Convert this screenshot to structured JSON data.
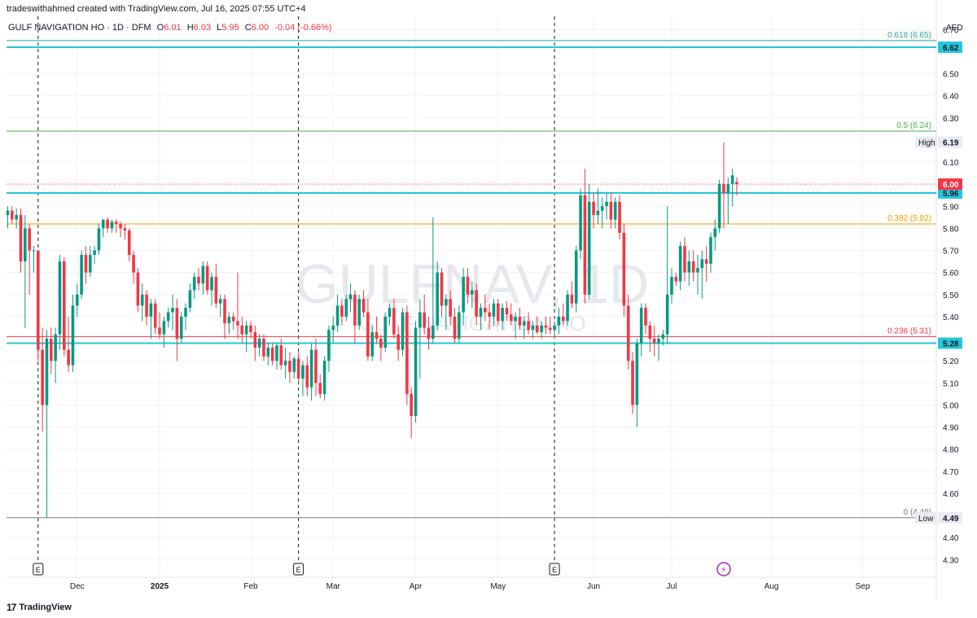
{
  "header": {
    "credit": "tradeswithahmed created with TradingView.com, Jul 16, 2025 07:55 UTC+4"
  },
  "legend": {
    "symbol": "GULF NAVIGATION HO · 1D · DFM",
    "open_label": "O",
    "open": "6.01",
    "high_label": "H",
    "high": "6.03",
    "low_label": "L",
    "low": "5.95",
    "close_label": "C",
    "close": "6.00",
    "change": "-0.04 (-0.66%)"
  },
  "watermark": {
    "ticker": "GULFNAV, 1D",
    "name": "GULF NAVIGATION HO"
  },
  "footer": {
    "brand": "TradingView"
  },
  "colors": {
    "up": "#089981",
    "down": "#f23645",
    "grid": "#f0f3fa",
    "text": "#131722",
    "support": "#26c6da",
    "fib_618": "#26a69a",
    "fib_5": "#4caf50",
    "fib_382": "#ff9800",
    "fib_236": "#f23645",
    "fib_0": "#787b86"
  },
  "chart_data": {
    "type": "candlestick",
    "currency": "AED",
    "ylim": [
      4.22,
      6.76
    ],
    "y_ticks": [
      "6.70",
      "6.50",
      "6.40",
      "6.30",
      "6.10",
      "5.90",
      "5.80",
      "5.70",
      "5.60",
      "5.50",
      "5.40",
      "5.20",
      "5.10",
      "5.00",
      "4.90",
      "4.80",
      "4.70",
      "4.60",
      "4.40",
      "4.30"
    ],
    "x_ticks": [
      {
        "label": "Dec",
        "index": 16
      },
      {
        "label": "2025",
        "index": 35
      },
      {
        "label": "Feb",
        "index": 56
      },
      {
        "label": "Mar",
        "index": 75
      },
      {
        "label": "Apr",
        "index": 94
      },
      {
        "label": "May",
        "index": 113
      },
      {
        "label": "Jun",
        "index": 135
      },
      {
        "label": "Jul",
        "index": 153
      },
      {
        "label": "Aug",
        "index": 176
      },
      {
        "label": "Sep",
        "index": 197
      }
    ],
    "fib_levels": [
      {
        "label": "0.618 (6.65)",
        "value": 6.65,
        "key": "fib_618"
      },
      {
        "label": "0.5 (6.24)",
        "value": 6.24,
        "key": "fib_5"
      },
      {
        "label": "0.382 (5.82)",
        "value": 5.82,
        "key": "fib_382"
      },
      {
        "label": "0.236 (5.31)",
        "value": 5.31,
        "key": "fib_236"
      },
      {
        "label": "0 (4.49)",
        "value": 4.49,
        "key": "fib_0"
      }
    ],
    "support_lines": [
      {
        "value": 6.62,
        "label": "6.62"
      },
      {
        "value": 5.96,
        "label": "5.96"
      },
      {
        "value": 5.28,
        "label": "5.28"
      }
    ],
    "price_tags": [
      {
        "value": 6.19,
        "label": "6.19",
        "side_label": "High"
      },
      {
        "value": 4.49,
        "label": "4.49",
        "side_label": "Low"
      },
      {
        "value": 6.0,
        "label": "6.00",
        "side_label": ""
      }
    ],
    "last_price": 6.0,
    "event_markers": [
      {
        "index": 7,
        "glyph": "E",
        "kind": "earnings"
      },
      {
        "index": 67,
        "glyph": "E",
        "kind": "earnings"
      },
      {
        "index": 126,
        "glyph": "E",
        "kind": "earnings"
      },
      {
        "index": 165,
        "glyph": "⚡",
        "kind": "event"
      }
    ],
    "earnings_lines": [
      7,
      67,
      126
    ],
    "candles": [
      [
        5.86,
        5.9,
        5.8,
        5.88
      ],
      [
        5.88,
        5.9,
        5.82,
        5.84
      ],
      [
        5.84,
        5.89,
        5.8,
        5.86
      ],
      [
        5.86,
        5.89,
        5.6,
        5.65
      ],
      [
        5.65,
        5.86,
        5.35,
        5.8
      ],
      [
        5.8,
        5.82,
        5.5,
        5.7
      ],
      [
        5.7,
        5.72,
        5.6,
        5.7
      ],
      [
        5.7,
        5.7,
        5.2,
        5.25
      ],
      [
        5.25,
        5.35,
        4.88,
        5.0
      ],
      [
        5.0,
        5.34,
        4.49,
        5.3
      ],
      [
        5.3,
        5.35,
        5.14,
        5.2
      ],
      [
        5.2,
        5.35,
        5.1,
        5.32
      ],
      [
        5.32,
        5.68,
        5.25,
        5.65
      ],
      [
        5.65,
        5.67,
        5.22,
        5.25
      ],
      [
        5.25,
        5.4,
        5.15,
        5.18
      ],
      [
        5.18,
        5.5,
        5.15,
        5.45
      ],
      [
        5.45,
        5.55,
        5.4,
        5.5
      ],
      [
        5.5,
        5.7,
        5.48,
        5.68
      ],
      [
        5.68,
        5.72,
        5.55,
        5.6
      ],
      [
        5.6,
        5.72,
        5.58,
        5.68
      ],
      [
        5.68,
        5.72,
        5.64,
        5.7
      ],
      [
        5.7,
        5.82,
        5.68,
        5.8
      ],
      [
        5.8,
        5.84,
        5.76,
        5.84
      ],
      [
        5.84,
        5.85,
        5.78,
        5.8
      ],
      [
        5.8,
        5.84,
        5.78,
        5.83
      ],
      [
        5.83,
        5.84,
        5.78,
        5.82
      ],
      [
        5.82,
        5.83,
        5.76,
        5.8
      ],
      [
        5.8,
        5.82,
        5.75,
        5.79
      ],
      [
        5.79,
        5.8,
        5.65,
        5.68
      ],
      [
        5.68,
        5.7,
        5.55,
        5.6
      ],
      [
        5.6,
        5.62,
        5.42,
        5.45
      ],
      [
        5.45,
        5.55,
        5.38,
        5.5
      ],
      [
        5.5,
        5.52,
        5.36,
        5.4
      ],
      [
        5.4,
        5.48,
        5.3,
        5.46
      ],
      [
        5.46,
        5.48,
        5.32,
        5.35
      ],
      [
        5.35,
        5.42,
        5.3,
        5.32
      ],
      [
        5.32,
        5.4,
        5.26,
        5.38
      ],
      [
        5.38,
        5.44,
        5.35,
        5.42
      ],
      [
        5.42,
        5.5,
        5.34,
        5.44
      ],
      [
        5.44,
        5.48,
        5.2,
        5.3
      ],
      [
        5.3,
        5.42,
        5.28,
        5.4
      ],
      [
        5.4,
        5.46,
        5.34,
        5.44
      ],
      [
        5.44,
        5.55,
        5.42,
        5.52
      ],
      [
        5.52,
        5.6,
        5.48,
        5.58
      ],
      [
        5.58,
        5.62,
        5.52,
        5.55
      ],
      [
        5.55,
        5.65,
        5.5,
        5.63
      ],
      [
        5.63,
        5.65,
        5.5,
        5.52
      ],
      [
        5.52,
        5.6,
        5.45,
        5.58
      ],
      [
        5.58,
        5.64,
        5.44,
        5.46
      ],
      [
        5.46,
        5.5,
        5.4,
        5.48
      ],
      [
        5.48,
        5.5,
        5.3,
        5.37
      ],
      [
        5.37,
        5.42,
        5.32,
        5.4
      ],
      [
        5.4,
        5.42,
        5.34,
        5.38
      ],
      [
        5.38,
        5.6,
        5.3,
        5.36
      ],
      [
        5.36,
        5.4,
        5.28,
        5.32
      ],
      [
        5.32,
        5.38,
        5.24,
        5.36
      ],
      [
        5.36,
        5.38,
        5.3,
        5.33
      ],
      [
        5.33,
        5.36,
        5.2,
        5.26
      ],
      [
        5.26,
        5.32,
        5.22,
        5.3
      ],
      [
        5.3,
        5.32,
        5.2,
        5.22
      ],
      [
        5.22,
        5.28,
        5.18,
        5.26
      ],
      [
        5.26,
        5.28,
        5.18,
        5.2
      ],
      [
        5.2,
        5.28,
        5.16,
        5.27
      ],
      [
        5.27,
        5.3,
        5.16,
        5.18
      ],
      [
        5.18,
        5.26,
        5.12,
        5.2
      ],
      [
        5.2,
        5.24,
        5.1,
        5.15
      ],
      [
        5.15,
        5.22,
        5.12,
        5.21
      ],
      [
        5.21,
        5.24,
        5.1,
        5.12
      ],
      [
        5.12,
        5.2,
        5.04,
        5.18
      ],
      [
        5.18,
        5.22,
        5.04,
        5.08
      ],
      [
        5.08,
        5.28,
        5.02,
        5.25
      ],
      [
        5.25,
        5.3,
        5.04,
        5.1
      ],
      [
        5.1,
        5.14,
        5.03,
        5.05
      ],
      [
        5.05,
        5.22,
        5.02,
        5.2
      ],
      [
        5.2,
        5.36,
        5.15,
        5.34
      ],
      [
        5.34,
        5.4,
        5.28,
        5.36
      ],
      [
        5.36,
        5.5,
        5.33,
        5.45
      ],
      [
        5.45,
        5.48,
        5.36,
        5.4
      ],
      [
        5.4,
        5.5,
        5.38,
        5.48
      ],
      [
        5.48,
        5.55,
        5.42,
        5.5
      ],
      [
        5.5,
        5.52,
        5.28,
        5.36
      ],
      [
        5.36,
        5.5,
        5.34,
        5.48
      ],
      [
        5.48,
        5.52,
        5.4,
        5.42
      ],
      [
        5.42,
        5.48,
        5.2,
        5.22
      ],
      [
        5.22,
        5.36,
        5.2,
        5.33
      ],
      [
        5.33,
        5.4,
        5.28,
        5.3
      ],
      [
        5.3,
        5.32,
        5.2,
        5.26
      ],
      [
        5.26,
        5.42,
        5.24,
        5.4
      ],
      [
        5.4,
        5.46,
        5.36,
        5.44
      ],
      [
        5.44,
        5.48,
        5.3,
        5.32
      ],
      [
        5.32,
        5.36,
        5.2,
        5.25
      ],
      [
        5.25,
        5.44,
        5.22,
        5.42
      ],
      [
        5.42,
        5.45,
        5.0,
        5.05
      ],
      [
        5.05,
        5.08,
        4.85,
        4.95
      ],
      [
        4.95,
        5.38,
        4.92,
        5.35
      ],
      [
        5.35,
        5.48,
        5.12,
        5.42
      ],
      [
        5.42,
        5.5,
        5.32,
        5.35
      ],
      [
        5.35,
        5.4,
        5.25,
        5.3
      ],
      [
        5.3,
        5.85,
        5.28,
        5.36
      ],
      [
        5.36,
        5.65,
        5.34,
        5.6
      ],
      [
        5.6,
        5.62,
        5.4,
        5.45
      ],
      [
        5.45,
        5.5,
        5.34,
        5.48
      ],
      [
        5.48,
        5.52,
        5.36,
        5.4
      ],
      [
        5.4,
        5.44,
        5.28,
        5.3
      ],
      [
        5.3,
        5.45,
        5.28,
        5.42
      ],
      [
        5.42,
        5.62,
        5.36,
        5.58
      ],
      [
        5.58,
        5.62,
        5.46,
        5.5
      ],
      [
        5.5,
        5.56,
        5.44,
        5.52
      ],
      [
        5.52,
        5.55,
        5.36,
        5.4
      ],
      [
        5.4,
        5.46,
        5.34,
        5.44
      ],
      [
        5.44,
        5.5,
        5.38,
        5.42
      ],
      [
        5.42,
        5.46,
        5.34,
        5.4
      ],
      [
        5.4,
        5.48,
        5.36,
        5.46
      ],
      [
        5.46,
        5.48,
        5.36,
        5.38
      ],
      [
        5.38,
        5.46,
        5.34,
        5.44
      ],
      [
        5.44,
        5.47,
        5.38,
        5.41
      ],
      [
        5.41,
        5.46,
        5.36,
        5.38
      ],
      [
        5.38,
        5.42,
        5.3,
        5.4
      ],
      [
        5.4,
        5.44,
        5.34,
        5.36
      ],
      [
        5.36,
        5.4,
        5.3,
        5.38
      ],
      [
        5.38,
        5.42,
        5.32,
        5.34
      ],
      [
        5.34,
        5.38,
        5.3,
        5.36
      ],
      [
        5.36,
        5.4,
        5.32,
        5.33
      ],
      [
        5.33,
        5.38,
        5.3,
        5.36
      ],
      [
        5.36,
        5.4,
        5.32,
        5.35
      ],
      [
        5.35,
        5.4,
        5.32,
        5.34
      ],
      [
        5.34,
        5.38,
        5.3,
        5.36
      ],
      [
        5.36,
        5.44,
        5.32,
        5.4
      ],
      [
        5.4,
        5.46,
        5.36,
        5.38
      ],
      [
        5.38,
        5.52,
        5.36,
        5.5
      ],
      [
        5.5,
        5.56,
        5.44,
        5.46
      ],
      [
        5.46,
        5.72,
        5.42,
        5.7
      ],
      [
        5.7,
        5.98,
        5.66,
        5.95
      ],
      [
        5.95,
        6.07,
        5.46,
        5.5
      ],
      [
        5.5,
        6.0,
        5.48,
        5.92
      ],
      [
        5.92,
        5.96,
        5.8,
        5.86
      ],
      [
        5.86,
        5.98,
        5.82,
        5.88
      ],
      [
        5.88,
        5.94,
        5.8,
        5.9
      ],
      [
        5.9,
        5.96,
        5.84,
        5.92
      ],
      [
        5.92,
        5.96,
        5.8,
        5.84
      ],
      [
        5.84,
        5.94,
        5.8,
        5.92
      ],
      [
        5.92,
        5.95,
        5.75,
        5.78
      ],
      [
        5.78,
        5.82,
        5.4,
        5.45
      ],
      [
        5.45,
        5.5,
        5.16,
        5.2
      ],
      [
        5.2,
        5.24,
        4.96,
        5.0
      ],
      [
        5.0,
        5.3,
        4.9,
        5.28
      ],
      [
        5.28,
        5.46,
        5.22,
        5.44
      ],
      [
        5.44,
        5.46,
        5.32,
        5.36
      ],
      [
        5.36,
        5.38,
        5.24,
        5.3
      ],
      [
        5.3,
        5.36,
        5.22,
        5.28
      ],
      [
        5.28,
        5.32,
        5.2,
        5.3
      ],
      [
        5.3,
        5.34,
        5.27,
        5.32
      ],
      [
        5.32,
        5.9,
        5.28,
        5.5
      ],
      [
        5.5,
        5.62,
        5.46,
        5.58
      ],
      [
        5.58,
        5.6,
        5.54,
        5.56
      ],
      [
        5.56,
        5.74,
        5.52,
        5.72
      ],
      [
        5.72,
        5.76,
        5.56,
        5.6
      ],
      [
        5.6,
        5.7,
        5.54,
        5.65
      ],
      [
        5.65,
        5.7,
        5.56,
        5.6
      ],
      [
        5.6,
        5.68,
        5.5,
        5.62
      ],
      [
        5.62,
        5.7,
        5.48,
        5.66
      ],
      [
        5.66,
        5.72,
        5.56,
        5.64
      ],
      [
        5.64,
        5.78,
        5.6,
        5.76
      ],
      [
        5.76,
        5.84,
        5.7,
        5.8
      ],
      [
        5.8,
        6.02,
        5.78,
        6.0
      ],
      [
        6.0,
        6.19,
        5.8,
        5.96
      ],
      [
        5.96,
        6.03,
        5.82,
        6.0
      ],
      [
        6.0,
        6.07,
        5.9,
        6.04
      ],
      [
        6.01,
        6.03,
        5.95,
        6.0
      ]
    ]
  }
}
